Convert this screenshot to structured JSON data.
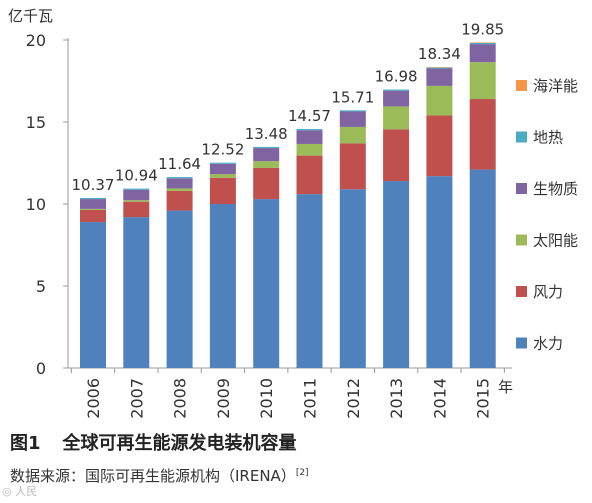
{
  "chart_data": {
    "type": "bar",
    "stacked": true,
    "y_unit_label": "亿千瓦",
    "x_unit_label": "年",
    "categories": [
      "2006",
      "2007",
      "2008",
      "2009",
      "2010",
      "2011",
      "2012",
      "2013",
      "2014",
      "2015"
    ],
    "totals": [
      "10.37",
      "10.94",
      "11.64",
      "12.52",
      "13.48",
      "14.57",
      "15.71",
      "16.98",
      "18.34",
      "19.85"
    ],
    "series": [
      {
        "name": "水力",
        "color": "#4f81bd",
        "values": [
          8.9,
          9.2,
          9.6,
          10.0,
          10.3,
          10.6,
          10.9,
          11.4,
          11.7,
          12.1
        ]
      },
      {
        "name": "风力",
        "color": "#c0504d",
        "values": [
          0.74,
          0.94,
          1.2,
          1.6,
          1.9,
          2.35,
          2.8,
          3.15,
          3.7,
          4.3
        ]
      },
      {
        "name": "太阳能",
        "color": "#9bbb59",
        "values": [
          0.06,
          0.09,
          0.15,
          0.22,
          0.41,
          0.71,
          1.0,
          1.4,
          1.8,
          2.25
        ]
      },
      {
        "name": "生物质",
        "color": "#8064a2",
        "values": [
          0.6,
          0.64,
          0.62,
          0.63,
          0.8,
          0.84,
          0.94,
          0.96,
          1.06,
          1.1
        ]
      },
      {
        "name": "地热",
        "color": "#4bacc6",
        "values": [
          0.07,
          0.07,
          0.07,
          0.07,
          0.07,
          0.07,
          0.07,
          0.07,
          0.07,
          0.08
        ]
      },
      {
        "name": "海洋能",
        "color": "#f79646",
        "values": [
          0.0,
          0.0,
          0.0,
          0.0,
          0.0,
          0.0,
          0.0,
          0.0,
          0.01,
          0.02
        ]
      }
    ],
    "ylim": [
      0,
      20
    ],
    "yticks": [
      "0",
      "5",
      "10",
      "15",
      "20"
    ],
    "grid": false,
    "legend_placement": "right"
  },
  "caption": {
    "figure_number": "图1",
    "title": "全球可再生能源发电装机容量"
  },
  "source": {
    "text": "数据来源：国际可再生能源机构（IRENA）",
    "ref": "[2]"
  }
}
